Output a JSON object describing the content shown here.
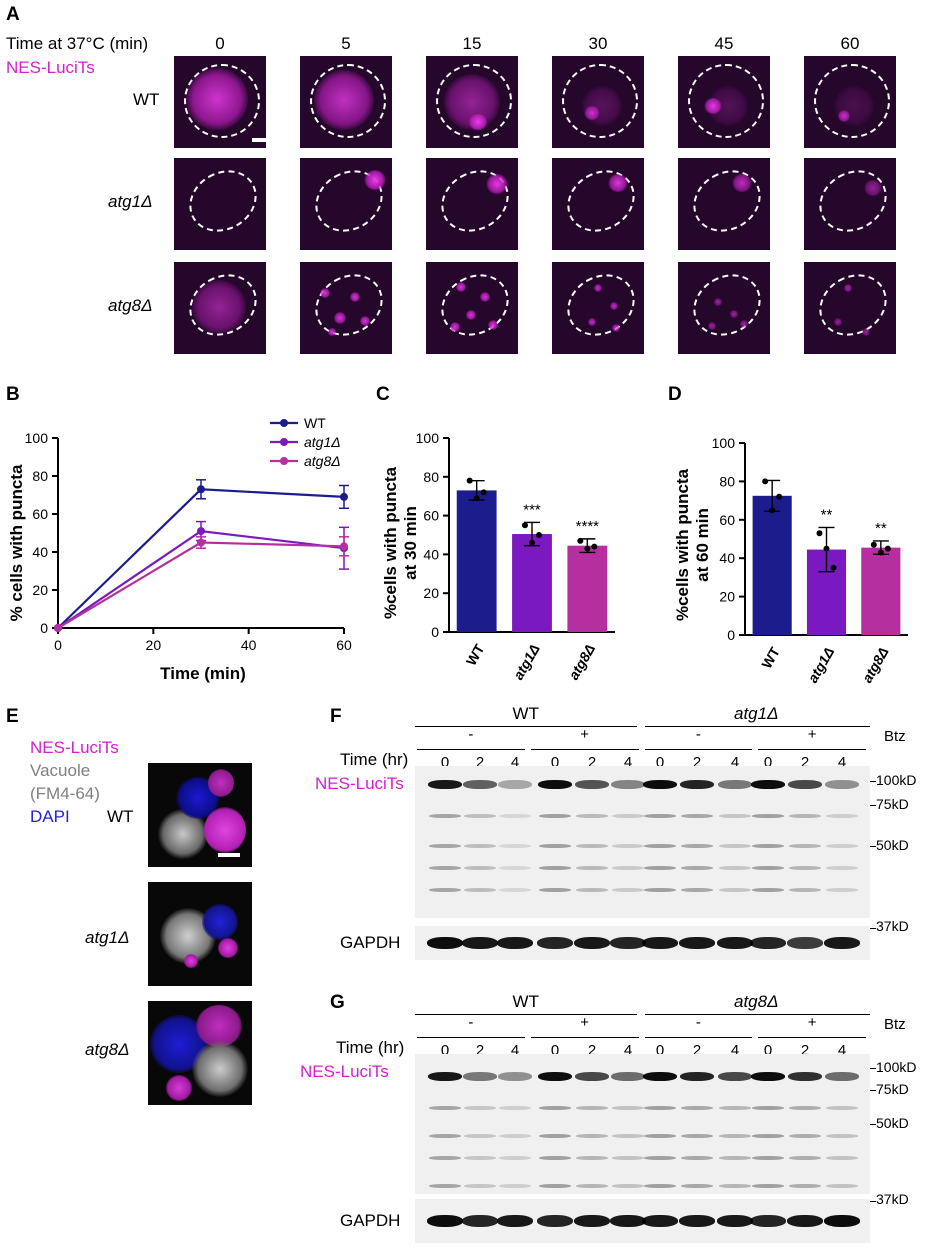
{
  "panels": {
    "A": "A",
    "B": "B",
    "C": "C",
    "D": "D",
    "E": "E",
    "F": "F",
    "G": "G"
  },
  "panelA": {
    "time_label": "Time at 37°C (min)",
    "reporter": "NES-LuciTs",
    "times": [
      "0",
      "5",
      "15",
      "30",
      "45",
      "60"
    ],
    "rows": [
      "WT",
      "atg1Δ",
      "atg8Δ"
    ]
  },
  "panelB": {
    "ylabel": "% cells with puncta",
    "xlabel": "Time (min)",
    "legend": [
      "WT",
      "atg1Δ",
      "atg8Δ"
    ]
  },
  "panelC": {
    "ylabel_line1": "%cells with puncta",
    "ylabel_line2": "at 30 min",
    "stars": [
      "***",
      "****"
    ]
  },
  "panelD": {
    "ylabel_line1": "%cells with puncta",
    "ylabel_line2": "at 60 min",
    "stars": [
      "**",
      "**"
    ]
  },
  "panelE": {
    "legend": [
      "NES-LuciTs",
      "Vacuole",
      "(FM4-64)",
      "DAPI"
    ],
    "rows": [
      "WT",
      "atg1Δ",
      "atg8Δ"
    ]
  },
  "panelF": {
    "strain1": "WT",
    "strain2": "atg1Δ",
    "btz": "Btz",
    "minus": "-",
    "plus": "+",
    "time_label": "Time (hr)",
    "times": [
      "0",
      "2",
      "4",
      "0",
      "2",
      "4",
      "0",
      "2",
      "4",
      "0",
      "2",
      "4"
    ],
    "reporter": "NES-LuciTs",
    "loading": "GAPDH",
    "markers": [
      "100kD",
      "75kD",
      "50kD",
      "37kD"
    ]
  },
  "panelG": {
    "strain1": "WT",
    "strain2": "atg8Δ",
    "btz": "Btz",
    "minus": "-",
    "plus": "+",
    "time_label": "Time (hr)",
    "times": [
      "0",
      "2",
      "4",
      "0",
      "2",
      "4",
      "0",
      "2",
      "4",
      "0",
      "2",
      "4"
    ],
    "reporter": "NES-LuciTs",
    "loading": "GAPDH",
    "markers": [
      "100kD",
      "75kD",
      "50kD",
      "37kD"
    ]
  },
  "chart_data": [
    {
      "type": "line",
      "xlabel": "Time (min)",
      "ylabel": "% cells with puncta",
      "x": [
        0,
        30,
        60
      ],
      "xlim": [
        0,
        60
      ],
      "ylim": [
        0,
        100
      ],
      "xticks": [
        0,
        20,
        40,
        60
      ],
      "yticks": [
        0,
        20,
        40,
        60,
        80,
        100
      ],
      "series": [
        {
          "name": "WT",
          "values": [
            0,
            73,
            69
          ],
          "errors": [
            0,
            5,
            6
          ],
          "color": "#1c1c8c"
        },
        {
          "name": "atg1Δ",
          "values": [
            0,
            51,
            42
          ],
          "errors": [
            0,
            5,
            11
          ],
          "color": "#7a19c0"
        },
        {
          "name": "atg8Δ",
          "values": [
            0,
            45,
            43
          ],
          "errors": [
            0,
            3,
            5
          ],
          "color": "#b62f9e"
        }
      ],
      "legend_position": "top-right"
    },
    {
      "type": "bar",
      "ylabel": "%cells with puncta at 30 min",
      "categories": [
        "WT",
        "atg1Δ",
        "atg8Δ"
      ],
      "values": [
        73,
        50.5,
        44.5
      ],
      "errors": [
        5,
        6,
        3.5
      ],
      "points": [
        [
          78,
          69,
          72
        ],
        [
          55,
          46,
          50
        ],
        [
          47,
          43,
          44
        ]
      ],
      "annotations": [
        "",
        "***",
        "****"
      ],
      "ylim": [
        0,
        100
      ],
      "yticks": [
        0,
        20,
        40,
        60,
        80,
        100
      ],
      "colors": [
        "#1c1c8c",
        "#7a19c0",
        "#b62f9e"
      ]
    },
    {
      "type": "bar",
      "ylabel": "%cells with puncta at 60 min",
      "categories": [
        "WT",
        "atg1Δ",
        "atg8Δ"
      ],
      "values": [
        72.5,
        44.5,
        45.5
      ],
      "errors": [
        8,
        11.5,
        3.5
      ],
      "points": [
        [
          80,
          65,
          72
        ],
        [
          53,
          45,
          35
        ],
        [
          47,
          43,
          45
        ]
      ],
      "annotations": [
        "",
        "**",
        "**"
      ],
      "ylim": [
        0,
        100
      ],
      "yticks": [
        0,
        20,
        40,
        60,
        80,
        100
      ],
      "colors": [
        "#1c1c8c",
        "#7a19c0",
        "#b62f9e"
      ]
    }
  ]
}
